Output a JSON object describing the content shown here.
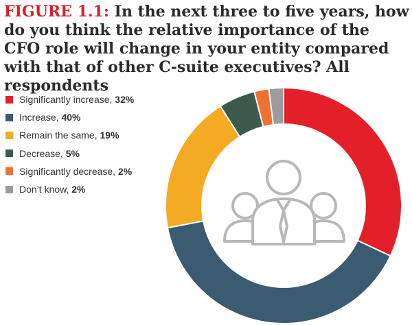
{
  "figure": {
    "label": "FIGURE 1.1:",
    "question": "In the next three to five years, how do you think the relative importance of the CFO role will change in your entity compared with that of other C-suite executives? All respondents"
  },
  "chart_data": {
    "type": "pie",
    "donut": true,
    "title": "FIGURE 1.1: In the next three to five years, how do you think the relative importance of the CFO role will change in your entity compared with that of other C-suite executives? All respondents",
    "legend_position": "left",
    "center_icon": "people-group-icon",
    "series": [
      {
        "label": "Significantly increase,",
        "value": 32,
        "value_text": "32%",
        "color": "#e3202a"
      },
      {
        "label": "Increase,",
        "value": 40,
        "value_text": "40%",
        "color": "#3b5b70"
      },
      {
        "label": "Remain the same,",
        "value": 19,
        "value_text": "19%",
        "color": "#f4aa23"
      },
      {
        "label": "Decrease,",
        "value": 5,
        "value_text": "5%",
        "color": "#3d5b4c"
      },
      {
        "label": "Significantly decrease,",
        "value": 2,
        "value_text": "2%",
        "color": "#ef7033"
      },
      {
        "label": "Don’t know,",
        "value": 2,
        "value_text": "2%",
        "color": "#9c9c9c"
      }
    ]
  }
}
